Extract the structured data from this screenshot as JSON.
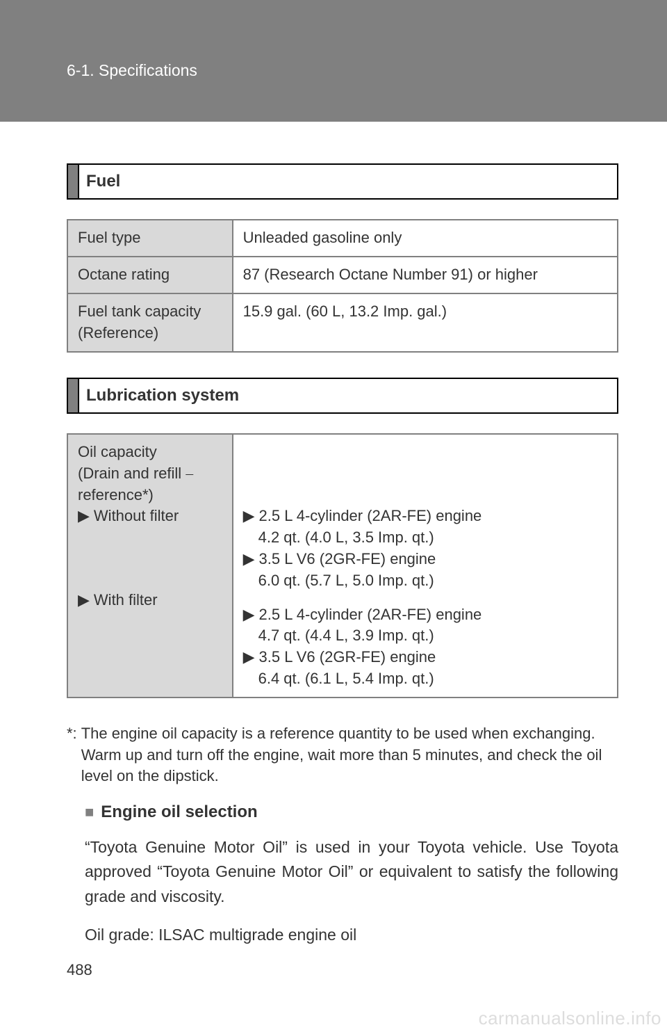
{
  "header": {
    "chapter": "6-1. Specifications"
  },
  "sections": {
    "fuel": {
      "title": "Fuel",
      "rows": {
        "fuelType": {
          "label": "Fuel type",
          "value": "Unleaded gasoline only"
        },
        "octane": {
          "label": "Octane rating",
          "value": "87 (Research Octane Number 91) or higher"
        },
        "tank": {
          "label": "Fuel tank capacity (Reference)",
          "value": "15.9 gal. (60 L, 13.2 Imp. gal.)"
        }
      }
    },
    "lubrication": {
      "title": "Lubrication system",
      "oil": {
        "heading1": "Oil capacity",
        "heading2": "(Drain and refill ⎯",
        "heading3": "reference*)",
        "withoutFilterLabel": "Without filter",
        "withFilterLabel": "With filter",
        "without": {
          "e1": "2.5 L 4-cylinder (2AR-FE) engine",
          "v1": "4.2 qt. (4.0 L, 3.5 Imp. qt.)",
          "e2": "3.5 L V6 (2GR-FE) engine",
          "v2": "6.0 qt. (5.7 L, 5.0 Imp. qt.)"
        },
        "with": {
          "e1": "2.5 L 4-cylinder (2AR-FE) engine",
          "v1": "4.7 qt. (4.4 L, 3.9 Imp. qt.)",
          "e2": "3.5 L V6 (2GR-FE) engine",
          "v2": "6.4 qt. (6.1 L, 5.4 Imp. qt.)"
        }
      },
      "footnote": {
        "mark": "*:",
        "text": "The engine oil capacity is a reference quantity to be used when exchanging. Warm up and turn off the engine, wait more than 5 minutes, and check the oil level on the dipstick."
      },
      "subhead": "Engine oil selection",
      "para1": "“Toyota Genuine Motor Oil” is used in your Toyota vehicle. Use Toyota approved “Toyota Genuine Motor Oil” or equivalent to satisfy the following grade and viscosity.",
      "para2": "Oil grade: ILSAC multigrade engine oil"
    }
  },
  "glyphs": {
    "triangle": "▶",
    "square": "■"
  },
  "pageNumber": "488",
  "watermark": "carmanualsonline.info",
  "colors": {
    "headerBg": "#808080",
    "cellLabelBg": "#d9d9d9",
    "border": "#808080",
    "text": "#333333"
  },
  "typography": {
    "bodyFontSize": 22,
    "headingFontSize": 24
  }
}
